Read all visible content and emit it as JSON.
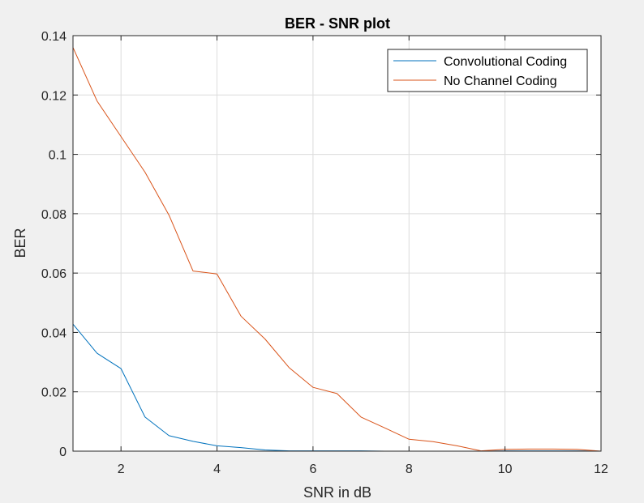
{
  "chart_data": {
    "type": "line",
    "title": "BER - SNR plot",
    "xlabel": "SNR in dB",
    "ylabel": "BER",
    "xlim": [
      1,
      12
    ],
    "ylim": [
      0,
      0.14
    ],
    "xticks": [
      2,
      4,
      6,
      8,
      10,
      12
    ],
    "xtick_labels": [
      "2",
      "4",
      "6",
      "8",
      "10",
      "12"
    ],
    "yticks": [
      0,
      0.02,
      0.04,
      0.06,
      0.08,
      0.1,
      0.12,
      0.14
    ],
    "ytick_labels": [
      "0",
      "0.02",
      "0.04",
      "0.06",
      "0.08",
      "0.1",
      "0.12",
      "0.14"
    ],
    "grid": true,
    "legend_position": "top-right",
    "x": [
      1,
      1.5,
      2,
      2.5,
      3,
      3.5,
      4,
      4.5,
      5,
      5.5,
      6,
      6.5,
      7,
      7.5,
      8,
      8.5,
      9,
      9.5,
      10,
      10.5,
      11,
      11.5,
      12
    ],
    "series": [
      {
        "name": "Convolutional Coding",
        "color": "#0072bd",
        "values": [
          0.0428,
          0.033,
          0.0278,
          0.0115,
          0.0052,
          0.0033,
          0.0018,
          0.0012,
          0.0004,
          0.0001,
          0.0001,
          0.0001,
          0.0001,
          0.0,
          0.0,
          0.0,
          0.0,
          0.0,
          0.0001,
          0.0001,
          0.0001,
          0.0001,
          0.0
        ]
      },
      {
        "name": "No Channel Coding",
        "color": "#d95319",
        "values": [
          0.136,
          0.118,
          0.106,
          0.094,
          0.0795,
          0.0607,
          0.0597,
          0.0455,
          0.0378,
          0.0282,
          0.0215,
          0.0194,
          0.0115,
          0.0078,
          0.004,
          0.0032,
          0.0018,
          0.0001,
          0.0006,
          0.0007,
          0.0007,
          0.0006,
          0.0
        ]
      }
    ]
  }
}
